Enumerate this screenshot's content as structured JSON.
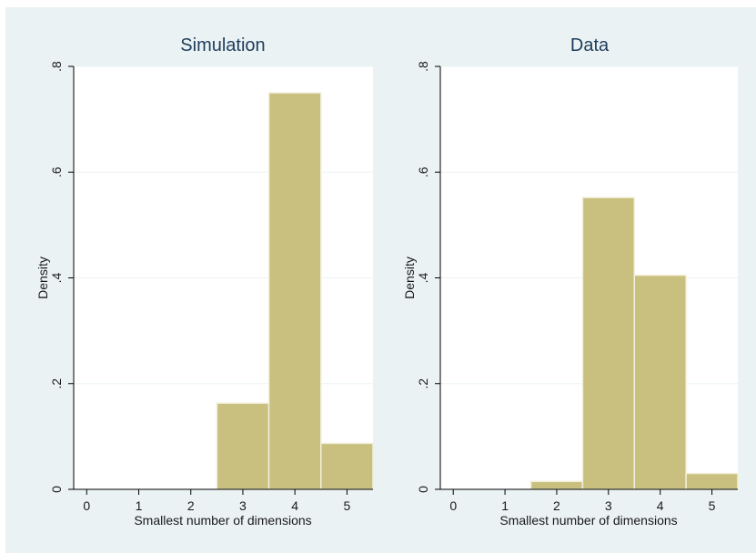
{
  "chart_data": [
    {
      "type": "bar",
      "title": "Simulation",
      "xlabel": "Smallest number of dimensions",
      "ylabel": "Density",
      "xlim": [
        -0.25,
        5.5
      ],
      "ylim": [
        0,
        0.8
      ],
      "xticks": [
        "0",
        "1",
        "2",
        "3",
        "4",
        "5"
      ],
      "yticks": [
        "0",
        ".2",
        ".4",
        ".6",
        ".8"
      ],
      "bins": [
        {
          "x0": 2.5,
          "x1": 3.5,
          "value": 0.163
        },
        {
          "x0": 3.5,
          "x1": 4.5,
          "value": 0.75
        },
        {
          "x0": 4.5,
          "x1": 5.5,
          "value": 0.087
        }
      ],
      "grid": true,
      "bar_color": "#c9c07f"
    },
    {
      "type": "bar",
      "title": "Data",
      "xlabel": "Smallest number of dimensions",
      "ylabel": "Density",
      "xlim": [
        -0.25,
        5.5
      ],
      "ylim": [
        0,
        0.8
      ],
      "xticks": [
        "0",
        "1",
        "2",
        "3",
        "4",
        "5"
      ],
      "yticks": [
        "0",
        ".2",
        ".4",
        ".6",
        ".8"
      ],
      "bins": [
        {
          "x0": 1.5,
          "x1": 2.5,
          "value": 0.015
        },
        {
          "x0": 2.5,
          "x1": 3.5,
          "value": 0.552
        },
        {
          "x0": 3.5,
          "x1": 4.5,
          "value": 0.405
        },
        {
          "x0": 4.5,
          "x1": 5.5,
          "value": 0.03
        }
      ],
      "grid": true,
      "bar_color": "#c9c07f"
    }
  ],
  "colors": {
    "background": "#eaf2f3",
    "plot_area": "#ffffff",
    "bar": "#c9c07f",
    "bar_edge": "#f2efdc",
    "grid": "#eef2f2",
    "title": "#1e3d5c",
    "text": "#1a1a1a"
  }
}
